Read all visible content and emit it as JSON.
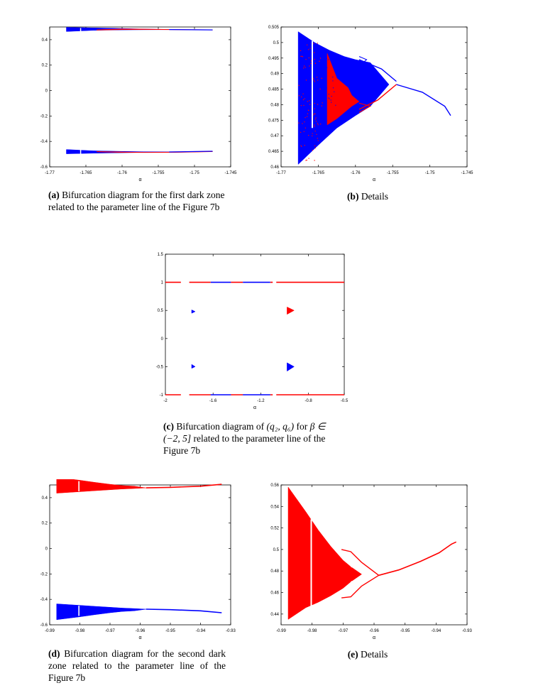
{
  "colors": {
    "blue": "#0000ff",
    "red": "#ff0000"
  },
  "chart_data": [
    {
      "id": "a",
      "type": "scatter",
      "xlim": [
        -1.77,
        -1.745
      ],
      "ylim": [
        -0.6,
        0.5
      ],
      "xticks": [
        "-1.77",
        "-1.765",
        "-1.76",
        "-1.755",
        "-1.75",
        "-1.745"
      ],
      "yticks": [
        "-0.6",
        "-0.4",
        "-0.2",
        "0",
        "0.2",
        "0.4"
      ],
      "xlabel": "α",
      "caption": {
        "label": "(a)",
        "text": "Bifurcation diagram for the first dark zone related to the parameter line of the Figure 7b"
      }
    },
    {
      "id": "b",
      "type": "scatter",
      "xlim": [
        -1.77,
        -1.745
      ],
      "ylim": [
        0.46,
        0.505
      ],
      "xticks": [
        "-1.77",
        "-1.765",
        "-1.76",
        "-1.755",
        "-1.75",
        "-1.745"
      ],
      "yticks": [
        "0.46",
        "0.465",
        "0.47",
        "0.475",
        "0.48",
        "0.485",
        "0.49",
        "0.495",
        "0.5",
        "0.505"
      ],
      "xlabel": "α",
      "caption": {
        "label": "(b)",
        "text": "Details"
      }
    },
    {
      "id": "c",
      "type": "scatter",
      "xlim": [
        -2,
        -0.5
      ],
      "ylim": [
        -1,
        1.5
      ],
      "xticks": [
        "-2",
        "-1.6",
        "-1.2",
        "-0.8",
        "-0.5"
      ],
      "yticks": [
        "-1",
        "-0.5",
        "0",
        "0.5",
        "1",
        "1.5"
      ],
      "xlabel": "α",
      "caption": {
        "label": "(c)",
        "text_before": "Bifurcation diagram of",
        "math": "(q₂, q₆)",
        "text_mid": "for",
        "beta": "β ∈ (−2, 5]",
        "text_after": "related to the parameter line of the Figure 7b"
      }
    },
    {
      "id": "d",
      "type": "scatter",
      "xlim": [
        -0.99,
        -0.93
      ],
      "ylim": [
        -0.6,
        0.5
      ],
      "xticks": [
        "-0.99",
        "-0.98",
        "-0.97",
        "-0.96",
        "-0.95",
        "-0.94",
        "-0.93"
      ],
      "yticks": [
        "-0.6",
        "-0.4",
        "-0.2",
        "0",
        "0.2",
        "0.4"
      ],
      "xlabel": "α",
      "caption": {
        "label": "(d)",
        "text": "Bifurcation diagram for the second dark zone related to the parameter line of the Figure 7b"
      }
    },
    {
      "id": "e",
      "type": "scatter",
      "xlim": [
        -0.99,
        -0.93
      ],
      "ylim": [
        0.43,
        0.56
      ],
      "xticks": [
        "-0.99",
        "-0.98",
        "-0.97",
        "-0.96",
        "-0.95",
        "-0.94",
        "-0.93"
      ],
      "yticks": [
        "0.44",
        "0.46",
        "0.48",
        "0.5",
        "0.52",
        "0.54",
        "0.56"
      ],
      "xlabel": "α",
      "caption": {
        "label": "(e)",
        "text": "Details"
      }
    }
  ]
}
